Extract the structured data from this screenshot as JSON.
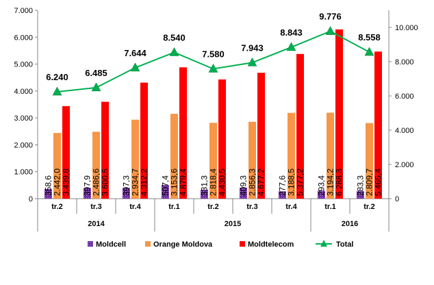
{
  "chart_data": {
    "type": "bar",
    "categories": [
      "tr.2",
      "tr.3",
      "tr.4",
      "tr.1",
      "tr.2",
      "tr.3",
      "tr.4",
      "tr.1",
      "tr.2"
    ],
    "groups": [
      {
        "label": "2014",
        "span": 3
      },
      {
        "label": "2015",
        "span": 4
      },
      {
        "label": "2016",
        "span": 2
      }
    ],
    "series": [
      {
        "name": "Moldcell",
        "type": "bar",
        "axis": "left",
        "color": "#7030A0",
        "values": [
          358.6,
          397.9,
          397.3,
          507.4,
          331.3,
          409.3,
          277.6,
          293.4,
          283.3
        ],
        "labels": [
          "358,6",
          "397,9",
          "397,3",
          "507,4",
          "331,3",
          "409,3",
          "277,6",
          "293,4",
          "283,3"
        ]
      },
      {
        "name": "Orange Moldova",
        "type": "bar",
        "axis": "left",
        "color": "#F79646",
        "values": [
          2442.0,
          2486.6,
          2934.7,
          3153.6,
          2818.4,
          2856.3,
          3188.5,
          3194.2,
          2809.7
        ],
        "labels": [
          "2.442,0",
          "2.486,6",
          "2.934,7",
          "3.153,6",
          "2.818,4",
          "2.856,3",
          "3.188,5",
          "3.194,2",
          "2.809,7"
        ]
      },
      {
        "name": "Moldtelecom",
        "type": "bar",
        "axis": "left",
        "color": "#FF0000",
        "values": [
          3439.8,
          3600.5,
          4312.2,
          4879.4,
          4430.5,
          4677.2,
          5377.2,
          6288.3,
          5465.4
        ],
        "labels": [
          "3.439,8",
          "3.600,5",
          "4.312,2",
          "4.879,4",
          "4.430,5",
          "4.677,2",
          "5.377,2",
          "6.288,3",
          "5.465,4"
        ]
      },
      {
        "name": "Total",
        "type": "line",
        "axis": "right",
        "color": "#00B050",
        "values": [
          6240,
          6485,
          7644,
          8540,
          7580,
          7943,
          8843,
          9776,
          8558
        ],
        "labels": [
          "6.240",
          "6.485",
          "7.644",
          "8.540",
          "7.580",
          "7.943",
          "8.843",
          "9.776",
          "8.558"
        ]
      }
    ],
    "y_left": {
      "min": 0,
      "max": 7000,
      "ticks": [
        "0",
        "1.000",
        "2.000",
        "3.000",
        "4.000",
        "5.000",
        "6.000",
        "7.000"
      ]
    },
    "y_right": {
      "min": 0,
      "max": 11000,
      "ticks": [
        "0",
        "2.000",
        "4.000",
        "6.000",
        "8.000",
        "10.000"
      ]
    },
    "legend_position": "bottom",
    "grid": false
  }
}
